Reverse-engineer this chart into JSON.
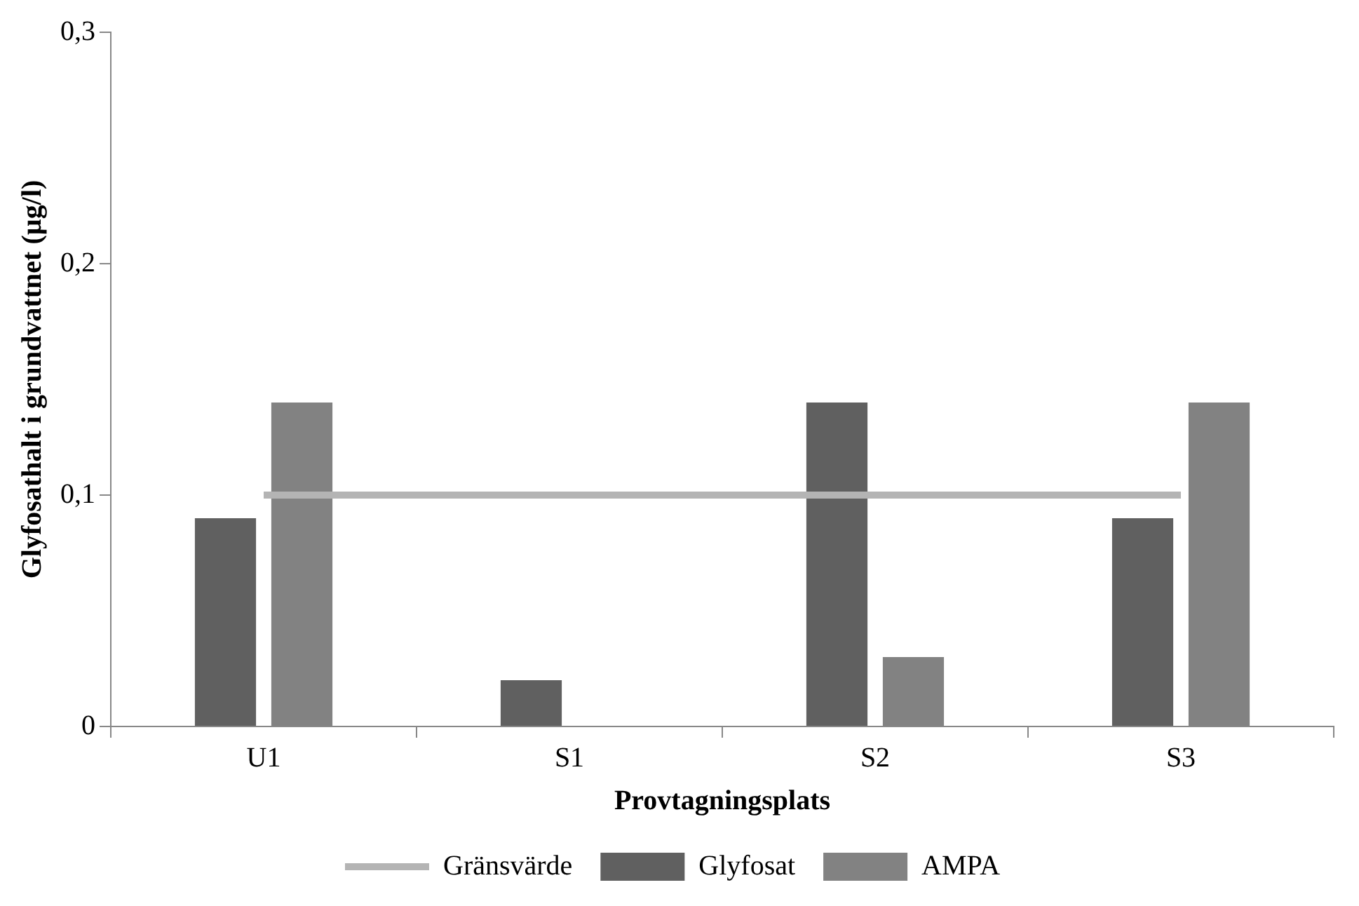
{
  "chart_data": {
    "type": "bar",
    "xlabel": "Provtagningsplats",
    "ylabel": "Glyfosathalt i grundvattnet (µg/l)",
    "categories": [
      "U1",
      "S1",
      "S2",
      "S3"
    ],
    "series": [
      {
        "name": "Glyfosat",
        "color": "#606060",
        "values": [
          0.09,
          0.02,
          0.14,
          0.09
        ]
      },
      {
        "name": "AMPA",
        "color": "#828282",
        "values": [
          0.14,
          0,
          0.03,
          0.14
        ]
      },
      {
        "name": "Gränsvärde",
        "type": "line",
        "color": "#b4b4b4",
        "values": [
          0.1,
          0.1,
          0.1,
          0.1
        ]
      }
    ],
    "ylim": [
      0,
      0.3
    ],
    "yticks": [
      0,
      {
        "value": 0.1,
        "label": "0,1"
      },
      {
        "value": 0.2,
        "label": "0,2"
      },
      {
        "value": 0.3,
        "label": "0,3"
      }
    ],
    "grid": false,
    "legend": "bottom",
    "marker": "none"
  }
}
